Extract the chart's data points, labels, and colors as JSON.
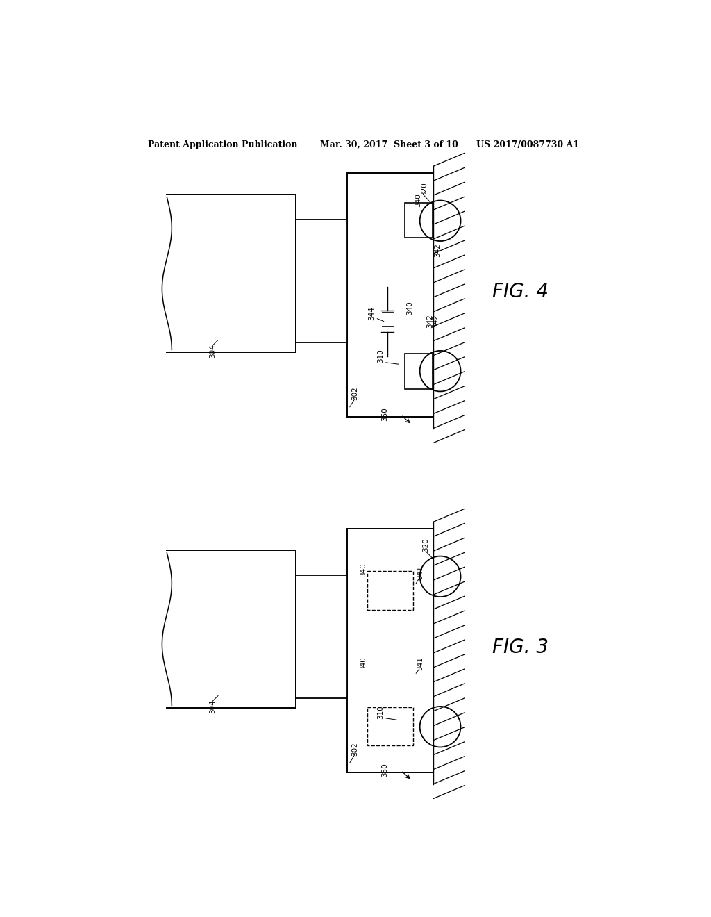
{
  "bg_color": "#ffffff",
  "line_color": "#000000",
  "header_left": "Patent Application Publication",
  "header_mid": "Mar. 30, 2017  Sheet 3 of 10",
  "header_right": "US 2017/0087730 A1",
  "fig4_label": "FIG. 4",
  "fig3_label": "FIG. 3",
  "fig_label_fontsize": 20,
  "header_fontsize": 9,
  "label_fontsize": 7.5
}
